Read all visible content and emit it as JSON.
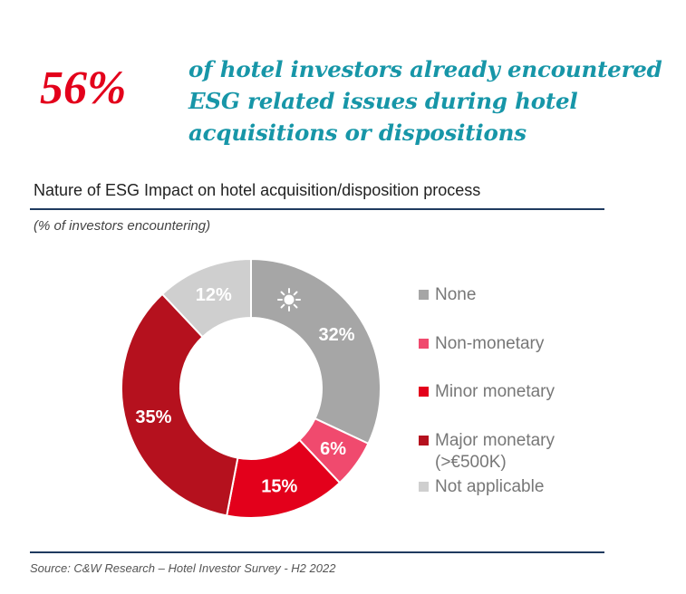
{
  "headline": {
    "percent": "56%",
    "lines": [
      "of hotel investors already encountered",
      "ESG related issues during hotel",
      "acquisitions or dispositions"
    ]
  },
  "chart_data": {
    "type": "pie",
    "title": "Nature of ESG Impact on hotel acquisition/disposition process",
    "subtitle": "(% of investors encountering)",
    "unit": "%",
    "slices": [
      {
        "label": "None",
        "legend_lines": [
          "None"
        ],
        "value": 32,
        "data_label": "32%",
        "color": "#a6a6a6",
        "label_color": "#ffffff"
      },
      {
        "label": "Non-monetary",
        "legend_lines": [
          "Non-monetary"
        ],
        "value": 6,
        "data_label": "6%",
        "color": "#f04a6e",
        "label_color": "#ffffff"
      },
      {
        "label": "Minor monetary",
        "legend_lines": [
          "Minor monetary"
        ],
        "value": 15,
        "data_label": "15%",
        "color": "#e3001b",
        "label_color": "#ffffff"
      },
      {
        "label": "Major monetary (>€500K)",
        "legend_lines": [
          "Major monetary",
          "(>€500K)"
        ],
        "value": 35,
        "data_label": "35%",
        "color": "#b5111e",
        "label_color": "#ffffff"
      },
      {
        "label": "Not applicable",
        "legend_lines": [
          "Not applicable"
        ],
        "value": 12,
        "data_label": "12%",
        "color": "#cfcfcf",
        "label_color": "#ffffff"
      }
    ],
    "start_angle_deg": 0,
    "direction": "clockwise",
    "hole": "white",
    "legend_position": "right",
    "annotation_icon": "sun-icon"
  },
  "source": "Source: C&W Research – Hotel Investor Survey - H2 2022",
  "colors": {
    "headline_red": "#e3001b",
    "headline_teal": "#1796a8",
    "rule_navy": "#1f3a5f"
  }
}
